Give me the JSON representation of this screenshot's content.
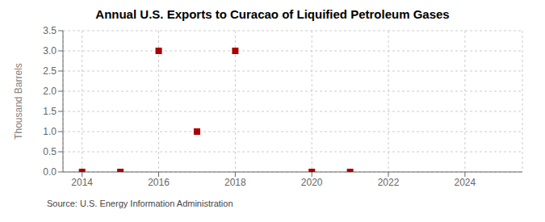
{
  "chart_data": {
    "type": "scatter",
    "title": "Annual U.S. Exports to Curacao of Liquified Petroleum Gases",
    "ylabel": "Thousand Barrels",
    "source": "Source: U.S. Energy Information Administration",
    "x": [
      2014,
      2015,
      2016,
      2017,
      2018,
      2020,
      2021
    ],
    "values": [
      0.0,
      0.0,
      3.0,
      1.0,
      3.0,
      0.0,
      0.0
    ],
    "color": "#aa0000",
    "marker": "square",
    "xlim": [
      2013.5,
      2025.5
    ],
    "xticks": [
      2014,
      2016,
      2018,
      2020,
      2022,
      2024
    ],
    "ylim": [
      0,
      3.5
    ],
    "yticks": [
      {
        "value": 0,
        "label": "0.0"
      },
      0.5,
      {
        "value": 1,
        "label": "1.0"
      },
      1.5,
      {
        "value": 2,
        "label": "2.0"
      },
      2.5,
      {
        "value": 3,
        "label": "3.0"
      },
      3.5
    ],
    "grid": true
  }
}
